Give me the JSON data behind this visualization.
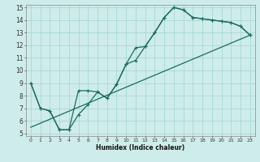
{
  "title": "",
  "xlabel": "Humidex (Indice chaleur)",
  "bg_color": "#ceecea",
  "grid_color": "#a8d8d4",
  "line_color": "#1a6b60",
  "xlim": [
    -0.5,
    23.5
  ],
  "ylim": [
    4.8,
    15.2
  ],
  "xticks": [
    0,
    1,
    2,
    3,
    4,
    5,
    6,
    7,
    8,
    9,
    10,
    11,
    12,
    13,
    14,
    15,
    16,
    17,
    18,
    19,
    20,
    21,
    22,
    23
  ],
  "yticks": [
    5,
    6,
    7,
    8,
    9,
    10,
    11,
    12,
    13,
    14,
    15
  ],
  "line1_x": [
    0,
    1,
    2,
    3,
    4,
    5,
    6,
    7,
    8,
    9,
    10,
    11,
    12,
    13,
    14,
    15,
    16,
    17,
    18,
    19,
    20,
    21,
    22,
    23
  ],
  "line1_y": [
    9,
    7,
    6.8,
    5.3,
    5.3,
    8.4,
    8.4,
    8.3,
    7.8,
    8.9,
    10.5,
    11.8,
    11.9,
    13.0,
    14.2,
    15.0,
    14.8,
    14.2,
    14.1,
    14.0,
    13.9,
    13.8,
    13.5,
    12.8
  ],
  "line2_x": [
    0,
    1,
    2,
    3,
    4,
    5,
    6,
    7,
    8,
    9,
    10,
    11,
    12,
    13,
    14,
    15,
    16,
    17,
    18,
    19,
    20,
    21,
    22,
    23
  ],
  "line2_y": [
    9,
    7,
    6.8,
    5.3,
    5.3,
    6.5,
    7.3,
    8.3,
    7.8,
    8.9,
    10.5,
    10.8,
    11.9,
    13.0,
    14.2,
    15.0,
    14.8,
    14.2,
    14.1,
    14.0,
    13.9,
    13.8,
    13.5,
    12.8
  ],
  "line3_x": [
    0,
    23
  ],
  "line3_y": [
    5.5,
    12.8
  ]
}
